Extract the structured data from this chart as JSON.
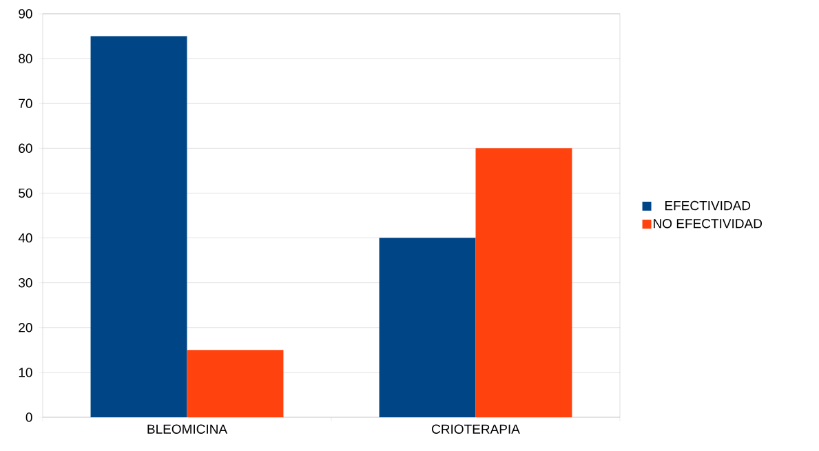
{
  "chart_data": {
    "type": "bar",
    "categories": [
      "BLEOMICINA",
      "CRIOTERAPIA"
    ],
    "series": [
      {
        "name": "EFECTIVIDAD",
        "color": "#004586",
        "values": [
          85,
          40
        ]
      },
      {
        "name": "NO EFECTIVIDAD",
        "color": "#ff420e",
        "values": [
          15,
          60
        ]
      }
    ],
    "ylim": [
      0,
      90
    ],
    "yticks": [
      0,
      10,
      20,
      30,
      40,
      50,
      60,
      70,
      80,
      90
    ],
    "grid": "y",
    "legend": "right"
  }
}
